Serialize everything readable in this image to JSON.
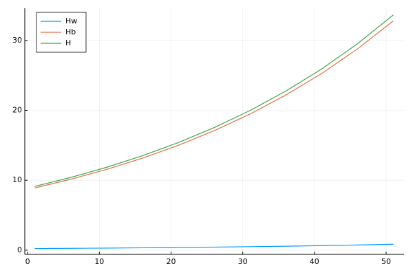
{
  "chart_data": {
    "type": "line",
    "x": [
      1,
      6,
      11,
      16,
      21,
      26,
      31,
      36,
      41,
      46,
      51
    ],
    "series": [
      {
        "name": "Hw",
        "color": "#009af9",
        "values": [
          0.23,
          0.26,
          0.3,
          0.34,
          0.39,
          0.44,
          0.5,
          0.57,
          0.65,
          0.74,
          0.85
        ]
      },
      {
        "name": "Hb",
        "color": "#e26f46",
        "values": [
          8.9,
          10.14,
          11.55,
          13.16,
          14.99,
          17.08,
          19.46,
          22.18,
          25.26,
          28.78,
          32.79
        ]
      },
      {
        "name": "H",
        "color": "#3ea44e",
        "values": [
          9.13,
          10.4,
          11.85,
          13.5,
          15.38,
          17.52,
          19.96,
          22.75,
          25.91,
          29.52,
          33.64
        ]
      }
    ],
    "xlim": [
      -0.4,
      52.5
    ],
    "xticks": [
      0,
      10,
      20,
      30,
      40,
      50
    ],
    "ylim": [
      -0.6,
      34.6
    ],
    "yticks": [
      0,
      10,
      20,
      30
    ],
    "grid": true,
    "legend": "top-left"
  }
}
